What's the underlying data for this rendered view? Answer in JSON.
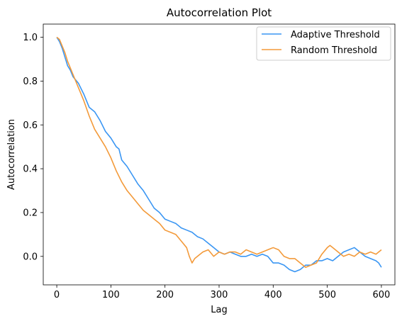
{
  "chart_data": {
    "type": "line",
    "title": "Autocorrelation Plot",
    "xlabel": "Lag",
    "ylabel": "Autocorrelation",
    "xlim": [
      -25,
      625
    ],
    "ylim": [
      -0.13,
      1.06
    ],
    "xticks": [
      0,
      100,
      200,
      300,
      400,
      500,
      600
    ],
    "yticks": [
      0.0,
      0.2,
      0.4,
      0.6,
      0.8,
      1.0
    ],
    "xtick_labels": [
      "0",
      "100",
      "200",
      "300",
      "400",
      "500",
      "600"
    ],
    "ytick_labels": [
      "0.0",
      "0.2",
      "0.4",
      "0.6",
      "0.8",
      "1.0"
    ],
    "grid": false,
    "legend_position": "top-right",
    "series": [
      {
        "name": "Adaptive Threshold",
        "color": "#3a96f3",
        "x": [
          0,
          5,
          10,
          15,
          20,
          25,
          30,
          40,
          50,
          60,
          65,
          70,
          75,
          80,
          90,
          100,
          110,
          115,
          120,
          130,
          140,
          150,
          160,
          170,
          180,
          190,
          200,
          210,
          220,
          230,
          240,
          250,
          260,
          270,
          280,
          290,
          300,
          310,
          320,
          330,
          340,
          350,
          360,
          370,
          380,
          390,
          400,
          410,
          420,
          430,
          440,
          450,
          460,
          470,
          480,
          490,
          500,
          510,
          520,
          530,
          540,
          550,
          560,
          570,
          580,
          590,
          595,
          600
        ],
        "y": [
          1.0,
          0.98,
          0.95,
          0.91,
          0.87,
          0.85,
          0.82,
          0.79,
          0.74,
          0.68,
          0.67,
          0.66,
          0.64,
          0.62,
          0.57,
          0.54,
          0.5,
          0.49,
          0.44,
          0.41,
          0.37,
          0.33,
          0.3,
          0.26,
          0.22,
          0.2,
          0.17,
          0.16,
          0.15,
          0.13,
          0.12,
          0.11,
          0.09,
          0.08,
          0.06,
          0.04,
          0.02,
          0.01,
          0.02,
          0.01,
          0.0,
          0.0,
          0.01,
          0.0,
          0.01,
          0.0,
          -0.03,
          -0.03,
          -0.04,
          -0.06,
          -0.07,
          -0.06,
          -0.04,
          -0.04,
          -0.02,
          -0.02,
          -0.01,
          -0.02,
          0.0,
          0.02,
          0.03,
          0.04,
          0.02,
          0.0,
          -0.01,
          -0.02,
          -0.03,
          -0.05
        ]
      },
      {
        "name": "Random Threshold",
        "color": "#f39a3a",
        "x": [
          0,
          5,
          10,
          15,
          20,
          25,
          30,
          40,
          50,
          60,
          70,
          80,
          90,
          100,
          110,
          120,
          130,
          140,
          150,
          160,
          170,
          180,
          190,
          200,
          210,
          220,
          230,
          240,
          245,
          250,
          255,
          260,
          270,
          280,
          290,
          300,
          310,
          320,
          330,
          340,
          350,
          360,
          370,
          380,
          390,
          400,
          410,
          420,
          430,
          440,
          450,
          460,
          470,
          480,
          490,
          500,
          505,
          510,
          520,
          530,
          540,
          550,
          560,
          570,
          580,
          590,
          600
        ],
        "y": [
          1.0,
          0.99,
          0.96,
          0.93,
          0.89,
          0.86,
          0.83,
          0.77,
          0.71,
          0.64,
          0.58,
          0.54,
          0.5,
          0.45,
          0.39,
          0.34,
          0.3,
          0.27,
          0.24,
          0.21,
          0.19,
          0.17,
          0.15,
          0.12,
          0.11,
          0.1,
          0.07,
          0.04,
          0.0,
          -0.03,
          -0.01,
          0.0,
          0.02,
          0.03,
          0.0,
          0.02,
          0.01,
          0.02,
          0.02,
          0.01,
          0.03,
          0.02,
          0.01,
          0.02,
          0.03,
          0.04,
          0.03,
          0.0,
          -0.01,
          -0.01,
          -0.03,
          -0.05,
          -0.04,
          -0.03,
          0.01,
          0.04,
          0.05,
          0.04,
          0.02,
          0.0,
          0.01,
          0.0,
          0.02,
          0.01,
          0.02,
          0.01,
          0.03
        ]
      }
    ]
  }
}
